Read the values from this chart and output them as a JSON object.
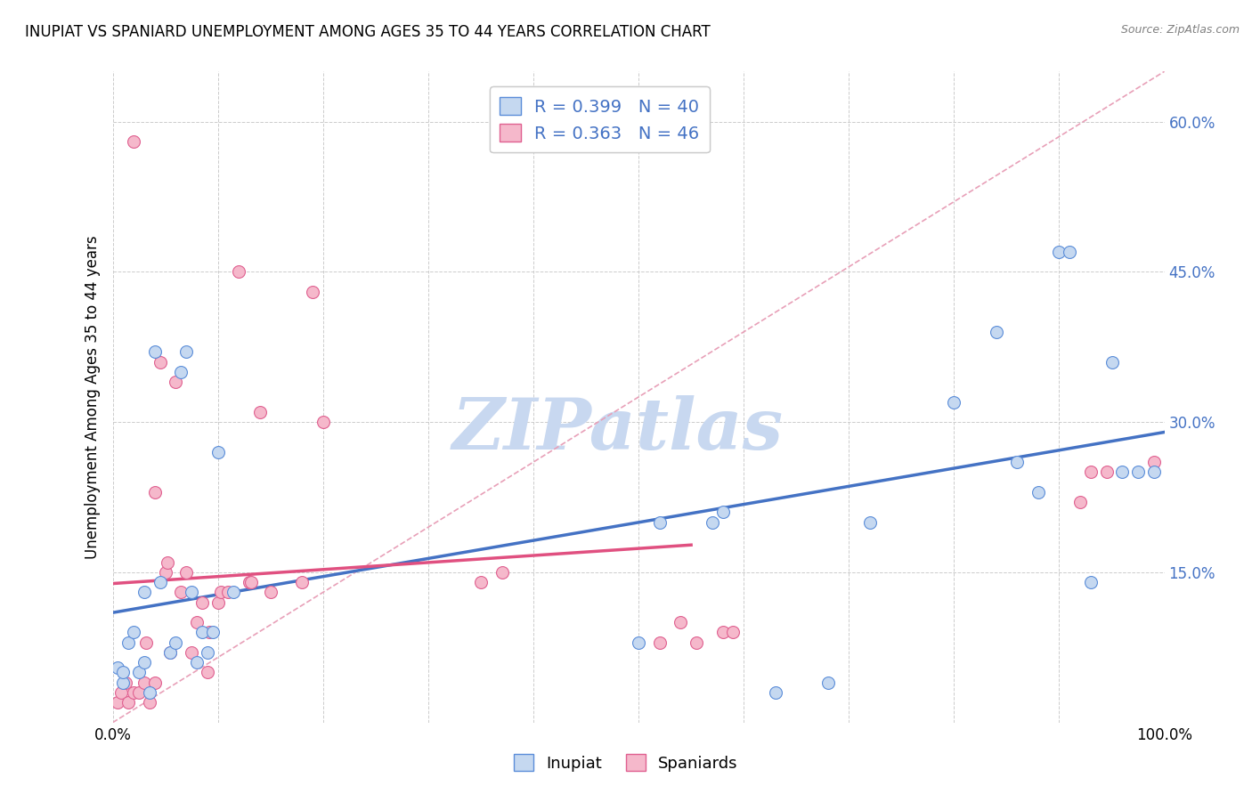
{
  "title": "INUPIAT VS SPANIARD UNEMPLOYMENT AMONG AGES 35 TO 44 YEARS CORRELATION CHART",
  "source": "Source: ZipAtlas.com",
  "ylabel": "Unemployment Among Ages 35 to 44 years",
  "xlim": [
    0,
    1.0
  ],
  "ylim": [
    0,
    0.65
  ],
  "xtick_positions": [
    0.0,
    0.1,
    0.2,
    0.3,
    0.4,
    0.5,
    0.6,
    0.7,
    0.8,
    0.9,
    1.0
  ],
  "xticklabels": [
    "0.0%",
    "",
    "",
    "",
    "",
    "",
    "",
    "",
    "",
    "",
    "100.0%"
  ],
  "ytick_positions": [
    0.0,
    0.15,
    0.3,
    0.45,
    0.6
  ],
  "yticklabels": [
    "",
    "15.0%",
    "30.0%",
    "45.0%",
    "60.0%"
  ],
  "legend_labels": [
    "R = 0.399   N = 40",
    "R = 0.363   N = 46"
  ],
  "inupiat_fill": "#c5d8f0",
  "spaniard_fill": "#f5b8cb",
  "inupiat_edge": "#5b8dd9",
  "spaniard_edge": "#e06090",
  "inupiat_line_color": "#4472c4",
  "spaniard_line_color": "#e05080",
  "diagonal_color": "#e8a0b8",
  "label_color": "#4472c4",
  "watermark_color": "#c8d8f0",
  "inupiat_x": [
    0.005,
    0.01,
    0.01,
    0.015,
    0.02,
    0.025,
    0.03,
    0.03,
    0.035,
    0.04,
    0.045,
    0.055,
    0.06,
    0.065,
    0.07,
    0.075,
    0.08,
    0.085,
    0.09,
    0.095,
    0.1,
    0.115,
    0.5,
    0.52,
    0.57,
    0.58,
    0.63,
    0.68,
    0.72,
    0.8,
    0.84,
    0.86,
    0.88,
    0.9,
    0.91,
    0.93,
    0.95,
    0.96,
    0.975,
    0.99
  ],
  "inupiat_y": [
    0.055,
    0.04,
    0.05,
    0.08,
    0.09,
    0.05,
    0.06,
    0.13,
    0.03,
    0.37,
    0.14,
    0.07,
    0.08,
    0.35,
    0.37,
    0.13,
    0.06,
    0.09,
    0.07,
    0.09,
    0.27,
    0.13,
    0.08,
    0.2,
    0.2,
    0.21,
    0.03,
    0.04,
    0.2,
    0.32,
    0.39,
    0.26,
    0.23,
    0.47,
    0.47,
    0.14,
    0.36,
    0.25,
    0.25,
    0.25
  ],
  "spaniard_x": [
    0.005,
    0.008,
    0.012,
    0.015,
    0.02,
    0.02,
    0.025,
    0.03,
    0.032,
    0.035,
    0.04,
    0.04,
    0.045,
    0.05,
    0.052,
    0.055,
    0.06,
    0.065,
    0.07,
    0.075,
    0.08,
    0.085,
    0.09,
    0.092,
    0.1,
    0.103,
    0.11,
    0.12,
    0.13,
    0.132,
    0.14,
    0.15,
    0.18,
    0.19,
    0.2,
    0.35,
    0.37,
    0.52,
    0.54,
    0.555,
    0.58,
    0.59,
    0.92,
    0.93,
    0.945,
    0.99
  ],
  "spaniard_y": [
    0.02,
    0.03,
    0.04,
    0.02,
    0.03,
    0.58,
    0.03,
    0.04,
    0.08,
    0.02,
    0.04,
    0.23,
    0.36,
    0.15,
    0.16,
    0.07,
    0.34,
    0.13,
    0.15,
    0.07,
    0.1,
    0.12,
    0.05,
    0.09,
    0.12,
    0.13,
    0.13,
    0.45,
    0.14,
    0.14,
    0.31,
    0.13,
    0.14,
    0.43,
    0.3,
    0.14,
    0.15,
    0.08,
    0.1,
    0.08,
    0.09,
    0.09,
    0.22,
    0.25,
    0.25,
    0.26
  ]
}
